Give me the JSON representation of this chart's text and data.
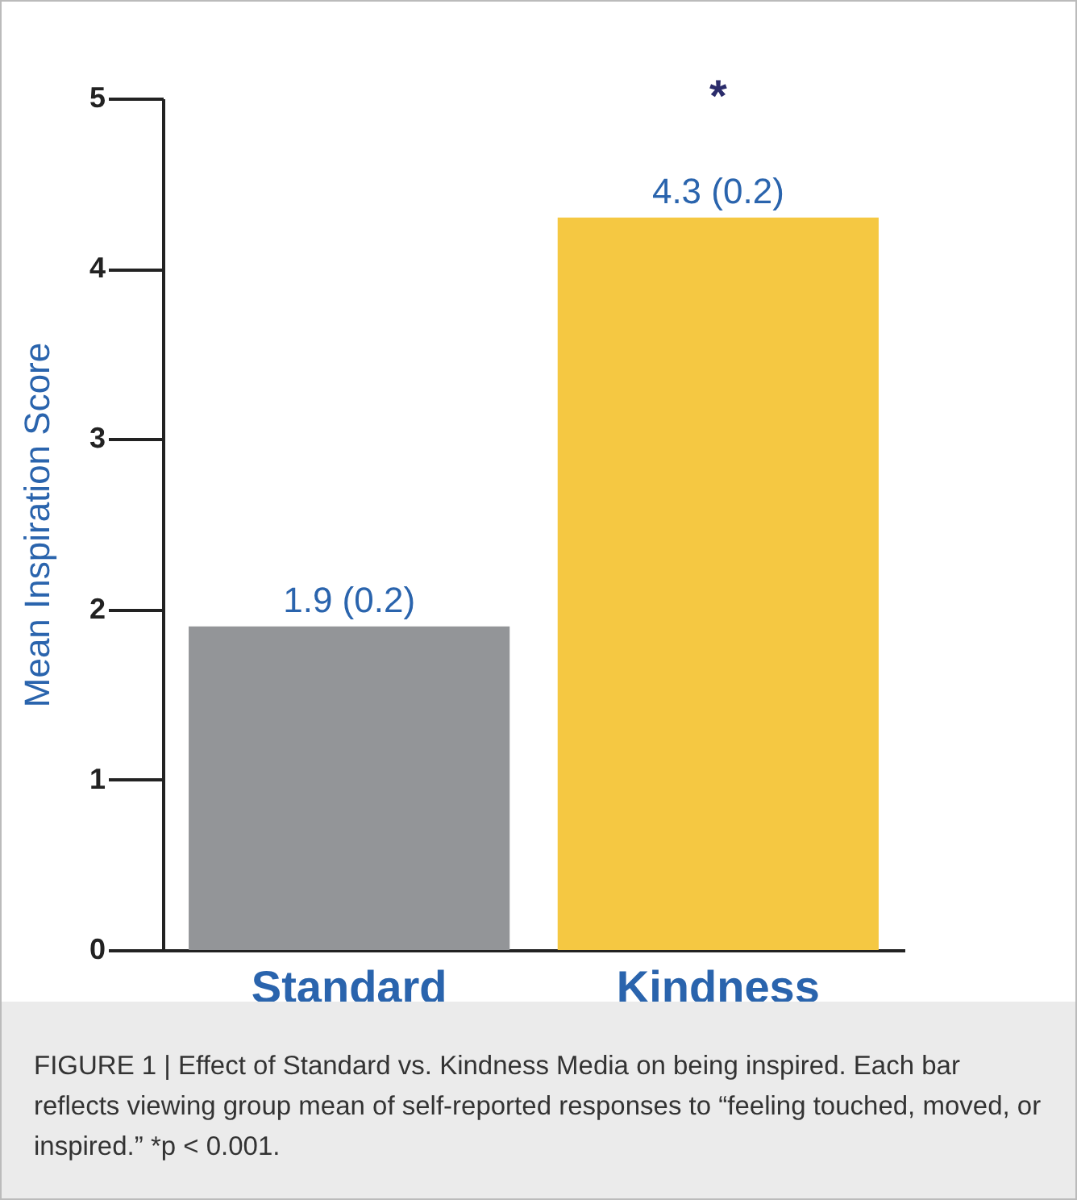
{
  "chart_data": {
    "type": "bar",
    "ylabel": "Mean Inspiration Score",
    "categories": [
      "Standard",
      "Kindness"
    ],
    "values": [
      1.9,
      4.3
    ],
    "colors": [
      "#939598",
      "#f5c842"
    ],
    "value_labels": [
      "1.9 (0.2)",
      "4.3 (0.2)"
    ],
    "ylim": [
      0,
      5
    ],
    "yticks": [
      0,
      1,
      2,
      3,
      4,
      5
    ],
    "grid": false,
    "annotations": [
      "*",
      "FIGURE 1 | Effect of Standard vs. Kindness Media on being inspired. Each bar reflects viewing group mean of self-reported responses to “feeling touched, moved, or inspired.” *p < 0.001."
    ]
  }
}
